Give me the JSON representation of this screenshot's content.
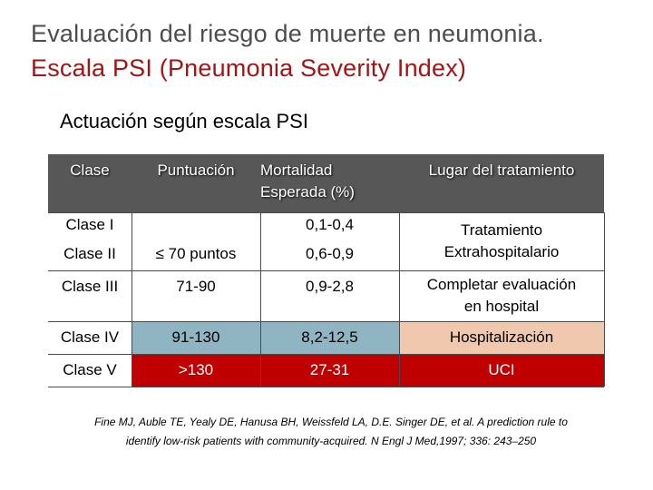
{
  "title": {
    "line1": "Evaluación del riesgo de muerte en neumonia.",
    "line2": "Escala PSI (Pneumonia Severity Index)"
  },
  "subtitle": "Actuación según escala PSI",
  "table": {
    "headers": {
      "clase": "Clase",
      "puntuacion": "Puntuación",
      "mortalidad_line1": "Mortalidad",
      "mortalidad_line2": "Esperada (%)",
      "lugar": "Lugar del tratamiento"
    },
    "rows": [
      {
        "clase": "Clase I",
        "puntuacion": "",
        "mortalidad": "0,1-0,4"
      },
      {
        "clase": "Clase II",
        "puntuacion": "≤ 70 puntos",
        "mortalidad": "0,6-0,9"
      },
      {
        "clase": "Clase III",
        "puntuacion": "71-90",
        "mortalidad": "0,9-2,8",
        "lugar_line1": "Completar evaluación",
        "lugar_line2": "en hospital"
      },
      {
        "clase": "Clase IV",
        "puntuacion": "91-130",
        "mortalidad": "8,2-12,5",
        "lugar": "Hospitalización"
      },
      {
        "clase": "Clase V",
        "puntuacion": ">130",
        "mortalidad": "27-31",
        "lugar": "UCI"
      }
    ],
    "merged_lugar_line1": "Tratamiento",
    "merged_lugar_line2": "Extrahospitalario"
  },
  "colors": {
    "header_bg": "#575757",
    "blue_cell": "#8fb4c2",
    "peach_cell": "#efc8ae",
    "red_cell": "#c00000",
    "title_red": "#a31515"
  },
  "reference": {
    "line1": "Fine MJ, Auble TE,  Yealy DE, Hanusa BH, Weissfeld LA, D.E. Singer DE, et al. A prediction rule to",
    "line2": "identify low-risk patients with community-acquired.  N Engl J Med,1997; 336: 243–250"
  }
}
